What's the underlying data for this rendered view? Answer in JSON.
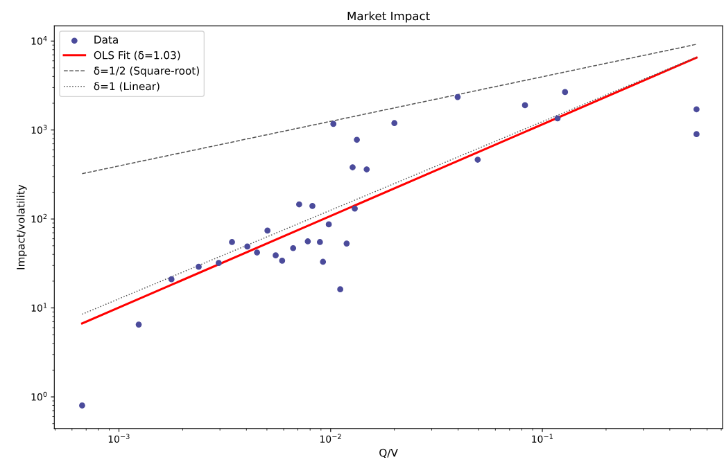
{
  "chart_data": {
    "type": "scatter",
    "title": "Market Impact",
    "xlabel": "Q/V",
    "ylabel": "Impact/volatility",
    "log": "xy",
    "grid": false,
    "legend": "top left",
    "xlim": [
      0.000495,
      0.71
    ],
    "ylim": [
      0.44,
      14800
    ],
    "xticks": [
      {
        "value": 0.001,
        "label": "10$^{−3}$"
      },
      {
        "value": 0.01,
        "label": "10$^{−2}$"
      },
      {
        "value": 0.1,
        "label": "10$^{−1}$"
      }
    ],
    "yticks": [
      {
        "value": 1,
        "label": "10$^{0}$"
      },
      {
        "value": 10,
        "label": "10$^{1}$"
      },
      {
        "value": 100,
        "label": "10$^{2}$"
      },
      {
        "value": 1000,
        "label": "10$^{3}$"
      },
      {
        "value": 10000,
        "label": "10$^{4}$"
      }
    ],
    "series": [
      {
        "name": "Data",
        "marker": "circle",
        "color": "#4b4b9b",
        "x": [
          0.00067,
          0.00124,
          0.00177,
          0.00238,
          0.00296,
          0.00342,
          0.00404,
          0.00449,
          0.00503,
          0.0055,
          0.0059,
          0.00665,
          0.0071,
          0.0078,
          0.0082,
          0.0089,
          0.0092,
          0.0098,
          0.0103,
          0.0111,
          0.0119,
          0.0127,
          0.013,
          0.0133,
          0.0148,
          0.02,
          0.0398,
          0.0495,
          0.0828,
          0.118,
          0.128,
          0.535,
          0.535
        ],
        "values": [
          0.8,
          6.5,
          21,
          29,
          32,
          55,
          49,
          42,
          74,
          39,
          34,
          47,
          146,
          56,
          140,
          55,
          33,
          87,
          1170,
          16.2,
          53,
          381,
          131,
          777,
          361,
          1196,
          2350,
          464,
          1900,
          1350,
          2670,
          1710,
          898
        ]
      },
      {
        "name": "OLS Fit (δ=1.03)",
        "type": "line",
        "line_style": "solid",
        "color": "#ff0000",
        "x": [
          0.00067,
          0.535
        ],
        "values": [
          6.7,
          6500
        ]
      },
      {
        "name": "δ=1/2 (Square-root)",
        "type": "line",
        "line_style": "dashed",
        "color": "#555555",
        "x": [
          0.00067,
          0.535
        ],
        "values": [
          323,
          9200
        ]
      },
      {
        "name": "δ=1 (Linear)",
        "type": "line",
        "line_style": "dotted",
        "color": "#555555",
        "x": [
          0.00067,
          0.535
        ],
        "values": [
          8.5,
          6600
        ]
      }
    ]
  }
}
